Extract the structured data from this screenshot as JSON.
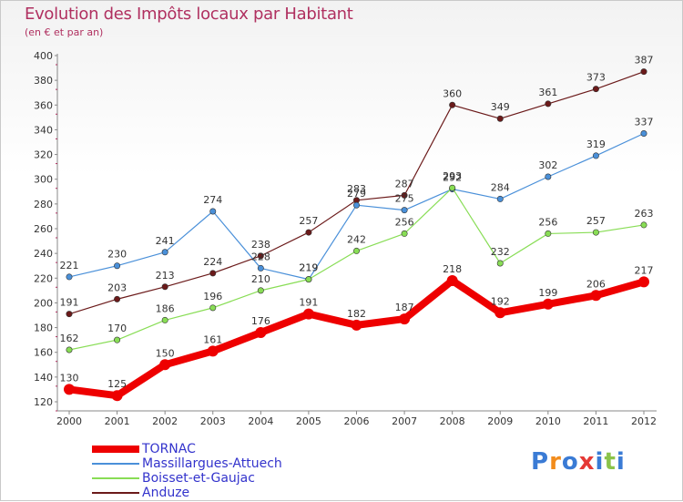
{
  "chart_data": {
    "type": "line",
    "title": "Evolution des Impôts locaux par Habitant",
    "subtitle": "(en € et par an)",
    "xlabel": "",
    "ylabel": "",
    "categories": [
      "2000",
      "2001",
      "2002",
      "2003",
      "2004",
      "2005",
      "2006",
      "2007",
      "2008",
      "2009",
      "2010",
      "2011",
      "2012"
    ],
    "ylim": [
      120,
      400
    ],
    "yticks": [
      120,
      140,
      160,
      180,
      200,
      220,
      240,
      260,
      280,
      300,
      320,
      340,
      360,
      380,
      400
    ],
    "grid": false,
    "legend_position": "bottom-left",
    "series": [
      {
        "name": "TORNAC",
        "color": "#ee0000",
        "values": [
          130,
          125,
          150,
          161,
          176,
          191,
          182,
          187,
          218,
          192,
          199,
          206,
          217
        ]
      },
      {
        "name": "Massillargues-Attuech",
        "color": "#4a90d9",
        "values": [
          221,
          230,
          241,
          274,
          228,
          219,
          279,
          275,
          292,
          284,
          302,
          319,
          337
        ]
      },
      {
        "name": "Boisset-et-Gaujac",
        "color": "#88dd55",
        "values": [
          162,
          170,
          186,
          196,
          210,
          219,
          242,
          256,
          293,
          232,
          256,
          257,
          263
        ]
      },
      {
        "name": "Anduze",
        "color": "#6b1a1a",
        "values": [
          191,
          203,
          213,
          224,
          238,
          257,
          283,
          287,
          360,
          349,
          361,
          373,
          387
        ]
      }
    ]
  },
  "legend": {
    "items": [
      {
        "label": "TORNAC"
      },
      {
        "label": "Massillargues-Attuech"
      },
      {
        "label": "Boisset-et-Gaujac"
      },
      {
        "label": "Anduze"
      }
    ]
  },
  "logo": {
    "text": "Proxiti",
    "colors": [
      "#3a7bd5",
      "#f28c1c",
      "#3a7bd5",
      "#e53935",
      "#3a7bd5",
      "#8bc34a",
      "#3a7bd5"
    ]
  }
}
